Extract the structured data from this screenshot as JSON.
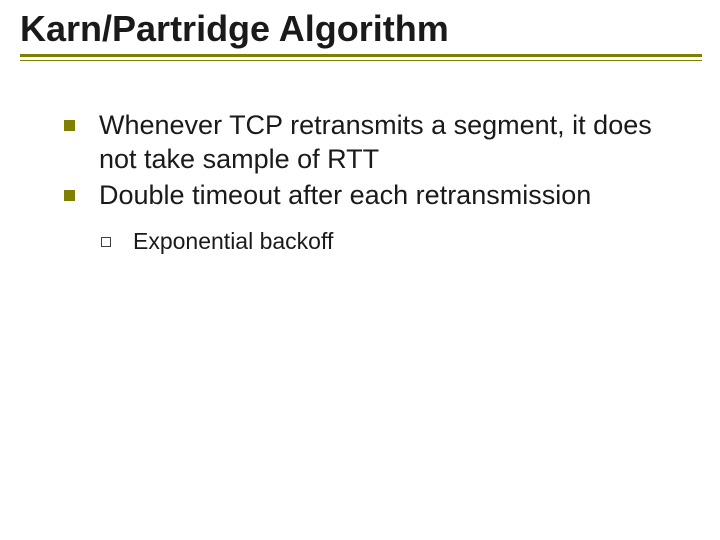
{
  "slide": {
    "title": "Karn/Partridge Algorithm",
    "title_color": "#1a1a1a",
    "title_fontsize": 36,
    "underline_color": "#808000",
    "background_color": "#ffffff",
    "bullets": [
      {
        "text": "Whenever TCP retransmits a segment, it does not take sample of RTT",
        "bullet_color": "#808000",
        "fontsize": 27
      },
      {
        "text": "Double timeout after each retransmission",
        "bullet_color": "#808000",
        "fontsize": 27,
        "sub_bullets": [
          {
            "text": "Exponential backoff",
            "fontsize": 23
          }
        ]
      }
    ]
  }
}
